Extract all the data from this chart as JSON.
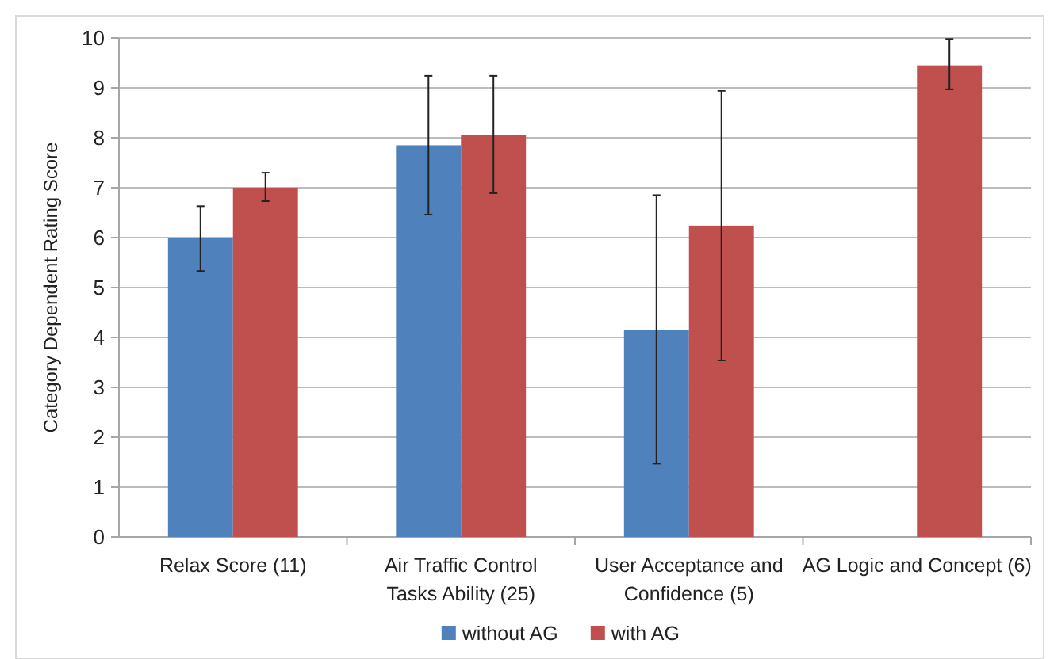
{
  "chart_data": {
    "type": "bar",
    "ylabel": "Category Dependent Rating Score",
    "categories": [
      "Relax Score (11)",
      "Air Traffic Control Tasks Ability (25)",
      "User Acceptance and Confidence (5)",
      "AG Logic and Concept (6)"
    ],
    "series": [
      {
        "name": "without AG",
        "color": "#4f81bd",
        "values": [
          6.0,
          7.85,
          4.15,
          null
        ],
        "errors": [
          [
            5.33,
            6.63
          ],
          [
            6.46,
            9.24
          ],
          [
            1.47,
            6.85
          ],
          null
        ]
      },
      {
        "name": "with AG",
        "color": "#c0504d",
        "values": [
          7.0,
          8.05,
          6.24,
          9.45
        ],
        "errors": [
          [
            6.73,
            7.3
          ],
          [
            6.89,
            9.24
          ],
          [
            3.54,
            8.94
          ],
          [
            8.97,
            9.98
          ]
        ]
      }
    ],
    "ylim": [
      0,
      10
    ],
    "yticks": [
      0,
      1,
      2,
      3,
      4,
      5,
      6,
      7,
      8,
      9,
      10
    ],
    "grid": "y",
    "legend": "bottom"
  }
}
